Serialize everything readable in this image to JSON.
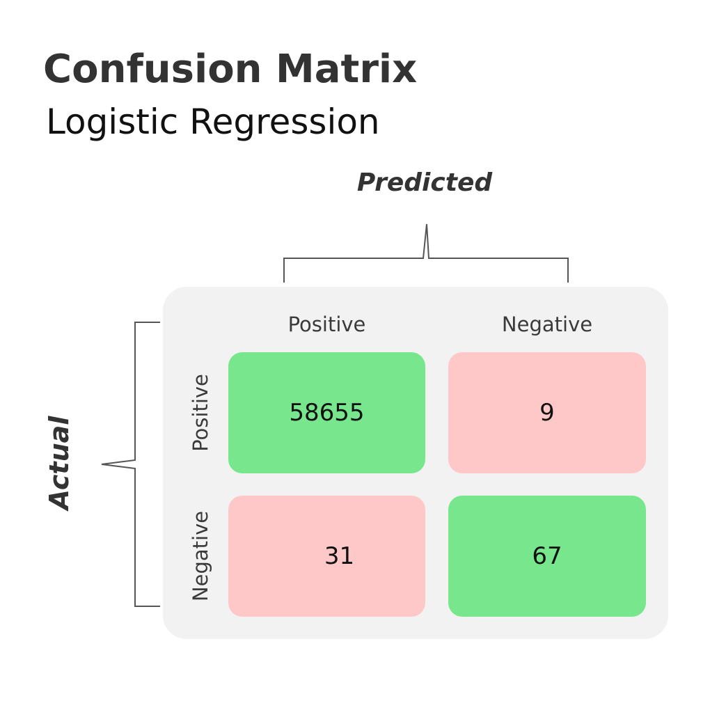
{
  "title": "Confusion Matrix",
  "subtitle": "Logistic Regression",
  "chart_data": {
    "type": "heatmap",
    "title": "Confusion Matrix",
    "subtitle": "Logistic Regression",
    "xlabel": "Predicted",
    "ylabel": "Actual",
    "x_categories": [
      "Positive",
      "Negative"
    ],
    "y_categories": [
      "Positive",
      "Negative"
    ],
    "values": [
      [
        58655,
        9
      ],
      [
        31,
        67
      ]
    ],
    "colors": {
      "correct": "#77e68c",
      "incorrect": "#ffc8c8",
      "panel": "#f2f2f2",
      "bracket": "#555555"
    }
  }
}
